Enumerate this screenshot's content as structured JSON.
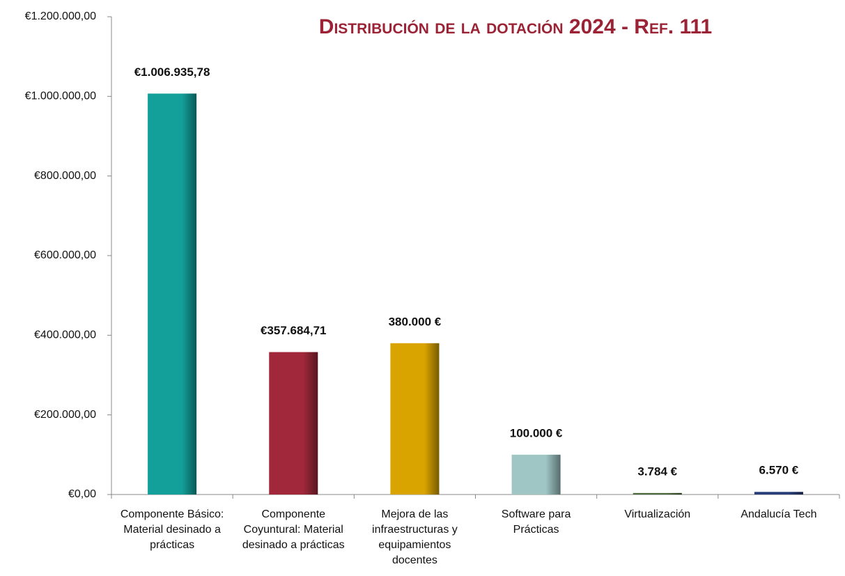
{
  "chart_data": {
    "type": "bar",
    "title": "Distribución de la dotación 2024 - Ref. 111",
    "categories": [
      "Componente Básico: Material desinado a prácticas",
      "Componente Coyuntural: Material desinado a prácticas",
      "Mejora de las infraestructuras y equipamientos docentes",
      "Software para Prácticas",
      "Virtualización",
      "Andalucía Tech"
    ],
    "values": [
      1006935.78,
      357684.71,
      380000,
      100000,
      3784,
      6570
    ],
    "value_labels": [
      "€1.006.935,78",
      "€357.684,71",
      "380.000 €",
      "100.000 €",
      "3.784 €",
      "6.570 €"
    ],
    "colors": [
      "#13a09a",
      "#a0283a",
      "#d9a400",
      "#9fc5c5",
      "#4a6a3a",
      "#2a3f7a"
    ],
    "ylim": [
      0,
      1200000
    ],
    "yticks": [
      {
        "value": 0,
        "label": "€0,00"
      },
      {
        "value": 200000,
        "label": "€200.000,00"
      },
      {
        "value": 400000,
        "label": "€400.000,00"
      },
      {
        "value": 600000,
        "label": "€600.000,00"
      },
      {
        "value": 800000,
        "label": "€800.000,00"
      },
      {
        "value": 1000000,
        "label": "€1.000.000,00"
      },
      {
        "value": 1200000,
        "label": "€1.200.000,00"
      }
    ],
    "grid": false
  }
}
